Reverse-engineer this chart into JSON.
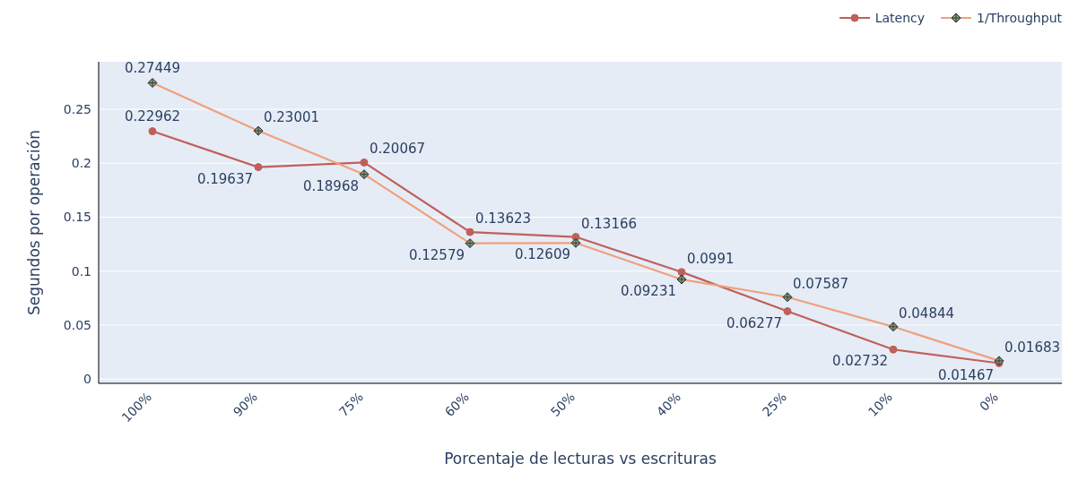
{
  "chart_data": {
    "type": "line",
    "xlabel": "Porcentaje de lecturas vs escrituras",
    "ylabel": "Segundos por operación",
    "categories": [
      "100%",
      "90%",
      "75%",
      "60%",
      "50%",
      "40%",
      "25%",
      "10%",
      "0%"
    ],
    "series": [
      {
        "name": "Latency",
        "color": "#c0605a",
        "marker": "circle",
        "values": [
          0.22962,
          0.19637,
          0.20067,
          0.13623,
          0.13166,
          0.0991,
          0.06277,
          0.02732,
          0.01467
        ]
      },
      {
        "name": "1/Throughput",
        "color": "#f0a07c",
        "marker": "diamond",
        "values": [
          0.27449,
          0.23001,
          0.18968,
          0.12579,
          0.12609,
          0.09231,
          0.07587,
          0.04844,
          0.01683
        ]
      }
    ],
    "ylim": [
      -0.004,
      0.294
    ],
    "yticks": [
      0,
      0.05,
      0.1,
      0.15,
      0.2,
      0.25
    ],
    "grid": "y",
    "legend": "top right",
    "data_labels": true
  }
}
